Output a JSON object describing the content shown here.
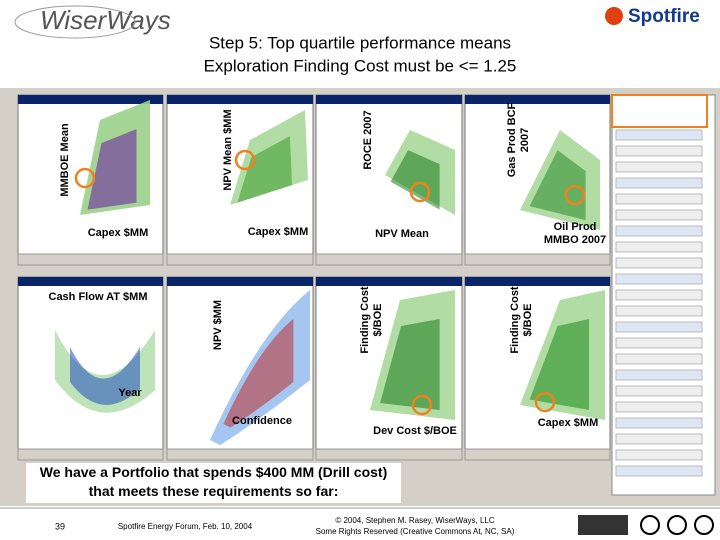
{
  "header": {
    "logo": "WiserWays",
    "brand": "Spotfire",
    "title_lines": [
      "Step 5: Top quartile performance means",
      "Exploration Finding Cost must be <= 1.25"
    ]
  },
  "panels": [
    {
      "y_label": [
        "MMBOE Mean"
      ],
      "x_label": [
        "Capex $MM"
      ]
    },
    {
      "y_label": [
        "NPV Mean $MM"
      ],
      "x_label": [
        "Capex $MM"
      ]
    },
    {
      "y_label": [
        "ROCE 2007"
      ],
      "x_label": [
        "NPV Mean"
      ]
    },
    {
      "y_label": [
        "Gas Prod BCF",
        "2007"
      ],
      "x_label": [
        "Oil Prod",
        "MMBO 2007"
      ]
    },
    {
      "y_label": [
        "Cash Flow AT $MM"
      ],
      "x_label": [
        "Year"
      ]
    },
    {
      "y_label": [
        "NPV $MM"
      ],
      "x_label": [
        "Confidence"
      ]
    },
    {
      "y_label": [
        "Finding Cost",
        "$/BOE"
      ],
      "x_label": [
        "Dev Cost $/BOE"
      ]
    },
    {
      "y_label": [
        "Finding Cost",
        "$/BOE"
      ],
      "x_label": [
        "Capex $MM"
      ]
    }
  ],
  "caption": "We have a Portfolio that spends $400 MM (Drill cost) that meets these requirements so far:",
  "footer": {
    "page": "39",
    "event": "Spotfire Energy Forum, Feb. 10, 2004",
    "copyright": "© 2004, Stephen M. Rasey, WiserWays, LLC",
    "license": "Some Rights Reserved (Creative Commons At, NC, SA)"
  }
}
